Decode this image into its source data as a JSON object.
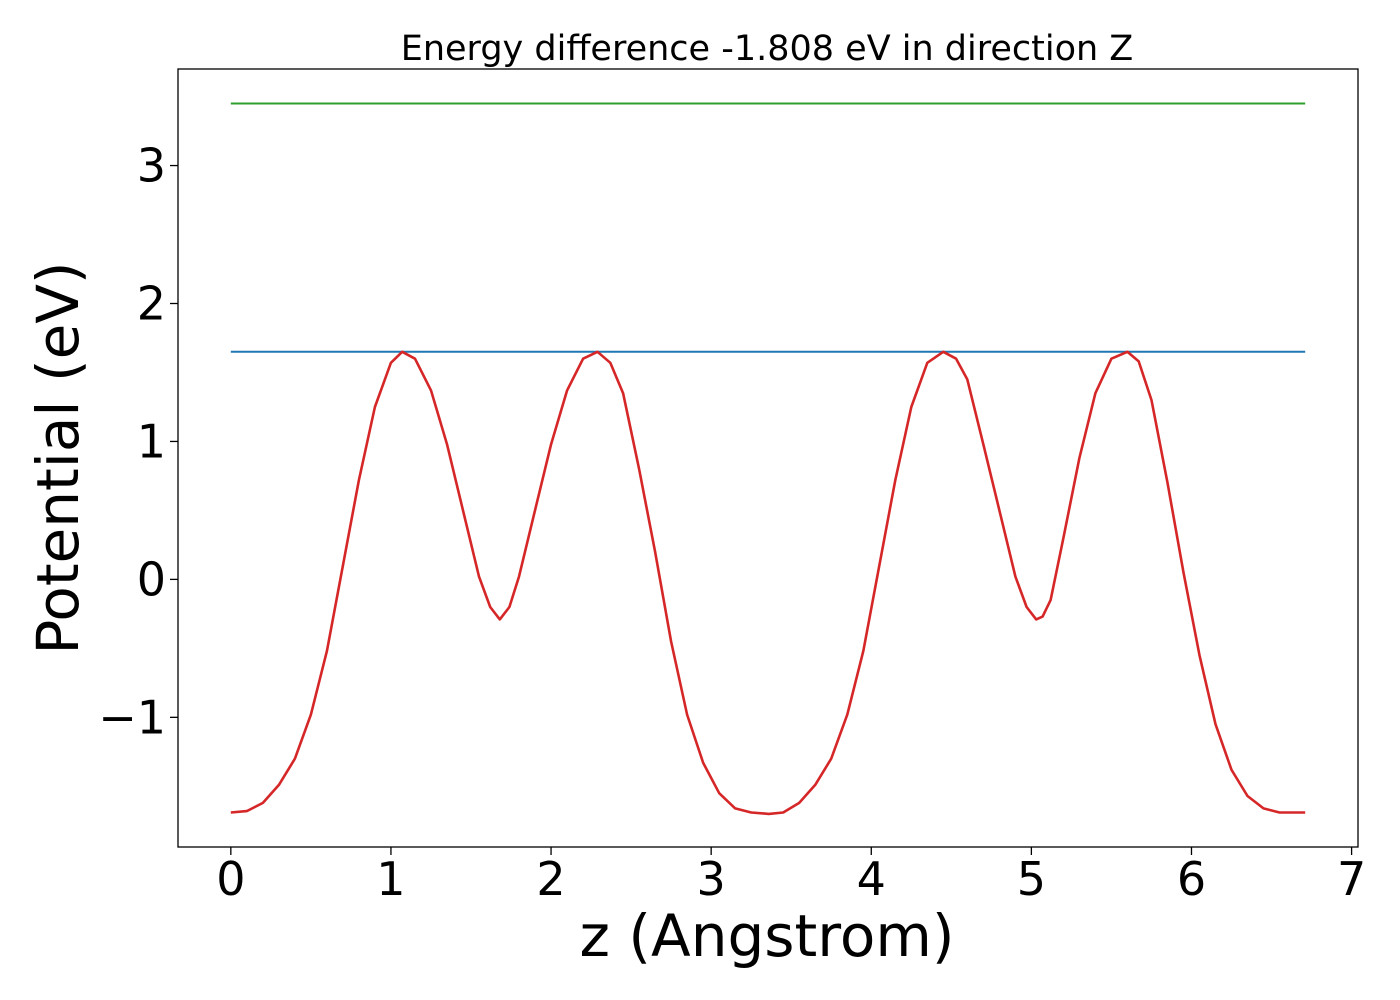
{
  "chart_data": {
    "type": "line",
    "title": "Energy difference -1.808 eV in direction Z",
    "xlabel": "z (Angstrom)",
    "ylabel": "Potential (eV)",
    "xlim": [
      -0.33,
      7.04
    ],
    "ylim": [
      -1.94,
      3.7
    ],
    "x_ticks": [
      0,
      1,
      2,
      3,
      4,
      5,
      6,
      7
    ],
    "x_tick_labels": [
      "0",
      "1",
      "2",
      "3",
      "4",
      "5",
      "6",
      "7"
    ],
    "y_ticks": [
      -1,
      0,
      1,
      2,
      3
    ],
    "y_tick_labels": [
      "−1",
      "0",
      "1",
      "2",
      "3"
    ],
    "grid": false,
    "legend": "none",
    "series": [
      {
        "color": "#2ca02c",
        "x": [
          0,
          6.71
        ],
        "y": [
          3.45,
          3.45
        ]
      },
      {
        "color": "#1f77b4",
        "x": [
          0,
          6.71
        ],
        "y": [
          1.65,
          1.65
        ]
      },
      {
        "color": "#d62728",
        "x": [
          0.0,
          0.1,
          0.2,
          0.3,
          0.4,
          0.5,
          0.6,
          0.7,
          0.8,
          0.9,
          1.0,
          1.07,
          1.15,
          1.25,
          1.35,
          1.45,
          1.55,
          1.62,
          1.68,
          1.74,
          1.8,
          1.9,
          2.0,
          2.1,
          2.2,
          2.29,
          2.37,
          2.45,
          2.55,
          2.65,
          2.75,
          2.85,
          2.95,
          3.05,
          3.15,
          3.25,
          3.36,
          3.45,
          3.55,
          3.65,
          3.75,
          3.85,
          3.95,
          4.05,
          4.15,
          4.25,
          4.35,
          4.45,
          4.53,
          4.6,
          4.7,
          4.8,
          4.9,
          4.97,
          5.03,
          5.07,
          5.12,
          5.2,
          5.3,
          5.4,
          5.5,
          5.6,
          5.67,
          5.75,
          5.85,
          5.95,
          6.05,
          6.15,
          6.25,
          6.35,
          6.45,
          6.55,
          6.65,
          6.71
        ],
        "y": [
          -1.69,
          -1.68,
          -1.62,
          -1.49,
          -1.3,
          -0.98,
          -0.52,
          0.1,
          0.72,
          1.25,
          1.57,
          1.65,
          1.6,
          1.37,
          0.98,
          0.5,
          0.02,
          -0.2,
          -0.29,
          -0.2,
          0.02,
          0.5,
          0.98,
          1.37,
          1.6,
          1.65,
          1.57,
          1.35,
          0.8,
          0.2,
          -0.45,
          -0.98,
          -1.33,
          -1.55,
          -1.66,
          -1.69,
          -1.7,
          -1.69,
          -1.62,
          -1.49,
          -1.3,
          -0.98,
          -0.52,
          0.1,
          0.72,
          1.25,
          1.57,
          1.65,
          1.6,
          1.45,
          0.98,
          0.5,
          0.02,
          -0.2,
          -0.29,
          -0.27,
          -0.15,
          0.3,
          0.88,
          1.35,
          1.6,
          1.65,
          1.58,
          1.3,
          0.7,
          0.05,
          -0.55,
          -1.05,
          -1.38,
          -1.57,
          -1.66,
          -1.69,
          -1.69,
          -1.69
        ]
      }
    ]
  }
}
